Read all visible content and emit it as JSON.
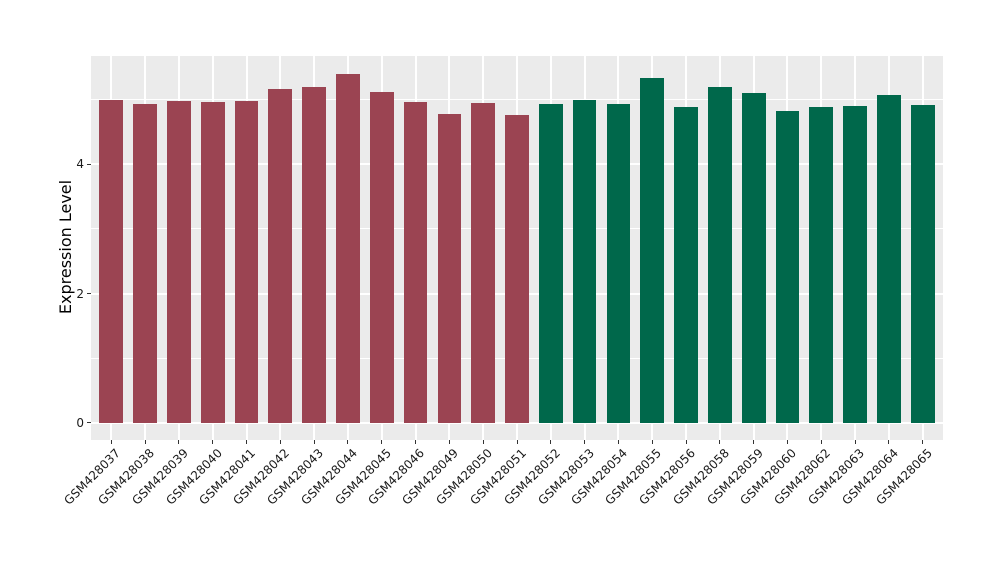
{
  "chart_data": {
    "type": "bar",
    "title": "",
    "xlabel": "",
    "ylabel": "Expression Level",
    "categories": [
      "GSM428037",
      "GSM428038",
      "GSM428039",
      "GSM428040",
      "GSM428041",
      "GSM428042",
      "GSM428043",
      "GSM428044",
      "GSM428045",
      "GSM428046",
      "GSM428049",
      "GSM428050",
      "GSM428051",
      "GSM428052",
      "GSM428053",
      "GSM428054",
      "GSM428055",
      "GSM428056",
      "GSM428058",
      "GSM428059",
      "GSM428060",
      "GSM428062",
      "GSM428063",
      "GSM428064",
      "GSM428065"
    ],
    "values": [
      4.99,
      4.94,
      4.98,
      4.96,
      4.98,
      5.16,
      5.19,
      5.4,
      5.12,
      4.96,
      4.78,
      4.95,
      4.77,
      4.94,
      5.0,
      4.93,
      5.33,
      4.88,
      5.19,
      5.1,
      4.82,
      4.88,
      4.91,
      5.08,
      4.92
    ],
    "bar_groups": [
      "maroon",
      "maroon",
      "maroon",
      "maroon",
      "maroon",
      "maroon",
      "maroon",
      "maroon",
      "maroon",
      "maroon",
      "maroon",
      "maroon",
      "maroon",
      "green",
      "green",
      "green",
      "green",
      "green",
      "green",
      "green",
      "green",
      "green",
      "green",
      "green",
      "green"
    ],
    "group_colors": {
      "maroon": "#9B4452",
      "green": "#00684B"
    },
    "yticks_major": [
      0,
      2,
      4
    ],
    "yticks_minor": [
      1,
      3,
      5
    ],
    "ylim": [
      -0.26,
      5.68
    ],
    "grid": true,
    "legend_position": "none",
    "panel_background": "#EBEBEB",
    "gridline_color": "#FFFFFF",
    "axis_text_color": "#1a1a1a"
  }
}
